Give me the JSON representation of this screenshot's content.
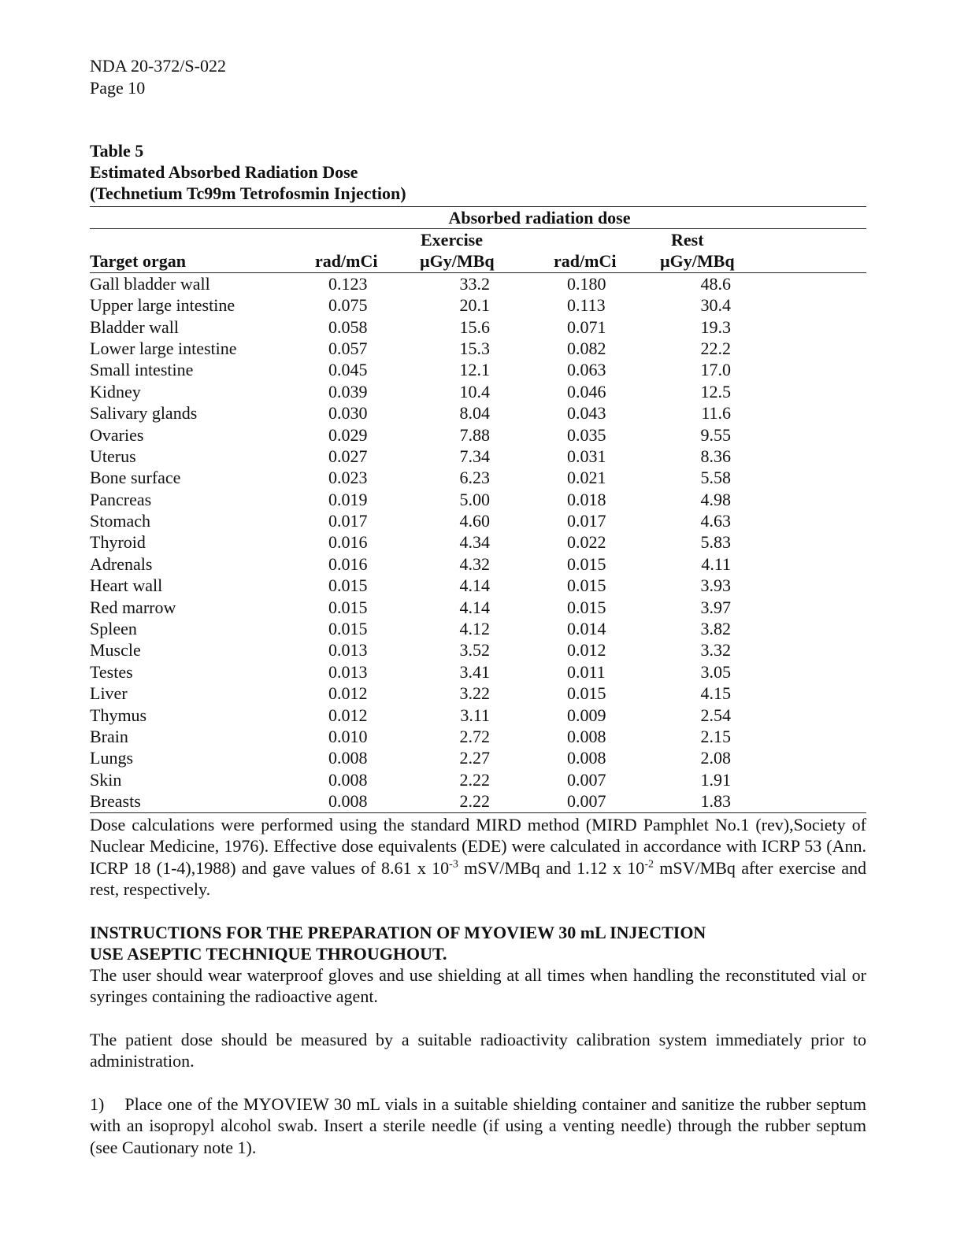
{
  "header": {
    "doc_id": "NDA 20-372/S-022",
    "page": "Page 10"
  },
  "table": {
    "number": "Table 5",
    "title": "Estimated Absorbed Radiation Dose",
    "subtitle": "(Technetium Tc99m Tetrofosmin Injection)",
    "group_header": "Absorbed radiation dose",
    "exercise_label": "Exercise",
    "rest_label": "Rest",
    "columns": [
      "Target organ",
      "rad/mCi",
      "µGy/MBq",
      "rad/mCi",
      "µGy/MBq"
    ],
    "rows": [
      [
        "Gall bladder wall",
        "0.123",
        "33.2",
        "0.180",
        "48.6"
      ],
      [
        "Upper large intestine",
        "0.075",
        "20.1",
        "0.113",
        "30.4"
      ],
      [
        "Bladder wall",
        "0.058",
        "15.6",
        "0.071",
        "19.3"
      ],
      [
        "Lower large intestine",
        "0.057",
        "15.3",
        "0.082",
        "22.2"
      ],
      [
        "Small intestine",
        "0.045",
        "12.1",
        "0.063",
        "17.0"
      ],
      [
        "Kidney",
        "0.039",
        "10.4",
        "0.046",
        "12.5"
      ],
      [
        "Salivary glands",
        "0.030",
        "8.04",
        "0.043",
        "11.6"
      ],
      [
        "Ovaries",
        "0.029",
        "7.88",
        "0.035",
        "9.55"
      ],
      [
        "Uterus",
        "0.027",
        "7.34",
        "0.031",
        "8.36"
      ],
      [
        "Bone surface",
        "0.023",
        "6.23",
        "0.021",
        "5.58"
      ],
      [
        "Pancreas",
        "0.019",
        "5.00",
        "0.018",
        "4.98"
      ],
      [
        "Stomach",
        "0.017",
        "4.60",
        "0.017",
        "4.63"
      ],
      [
        "Thyroid",
        "0.016",
        "4.34",
        "0.022",
        "5.83"
      ],
      [
        "Adrenals",
        "0.016",
        "4.32",
        "0.015",
        "4.11"
      ],
      [
        "Heart wall",
        "0.015",
        "4.14",
        "0.015",
        "3.93"
      ],
      [
        "Red marrow",
        "0.015",
        "4.14",
        "0.015",
        "3.97"
      ],
      [
        "Spleen",
        "0.015",
        "4.12",
        "0.014",
        "3.82"
      ],
      [
        "Muscle",
        "0.013",
        "3.52",
        "0.012",
        "3.32"
      ],
      [
        "Testes",
        "0.013",
        "3.41",
        "0.011",
        "3.05"
      ],
      [
        "Liver",
        "0.012",
        "3.22",
        "0.015",
        "4.15"
      ],
      [
        "Thymus",
        "0.012",
        "3.11",
        "0.009",
        "2.54"
      ],
      [
        "Brain",
        "0.010",
        "2.72",
        "0.008",
        "2.15"
      ],
      [
        "Lungs",
        "0.008",
        "2.27",
        "0.008",
        "2.08"
      ],
      [
        "Skin",
        "0.008",
        "2.22",
        "0.007",
        "1.91"
      ],
      [
        "Breasts",
        "0.008",
        "2.22",
        "0.007",
        "1.83"
      ]
    ]
  },
  "note": {
    "part1": "Dose calculations were performed using the standard MIRD method (MIRD Pamphlet No.1 (rev),Society of Nuclear Medicine, 1976). Effective dose equivalents (EDE) were calculated in accordance with ICRP 53 (Ann. ICRP 18 (1-4),1988) and gave values of 8.61 x 10",
    "exp1": "-3",
    "part2": " mSV/MBq and 1.12 x 10",
    "exp2": "-2",
    "part3": " mSV/MBq after exercise and rest, respectively."
  },
  "instructions": {
    "title1": "INSTRUCTIONS FOR THE PREPARATION OF MYOVIEW 30 mL INJECTION",
    "title2": "USE ASEPTIC TECHNIQUE THROUGHOUT.",
    "para1": "The user should wear waterproof gloves and use shielding at all times when handling the reconstituted vial or syringes containing the radioactive agent.",
    "para2": "The patient dose should be measured by a suitable radioactivity calibration system immediately prior to administration.",
    "step1_num": "1)",
    "step1": "Place one of the MYOVIEW 30 mL vials in a suitable shielding container and sanitize the rubber septum with an isopropyl alcohol swab. Insert a sterile needle (if using a venting needle) through the rubber septum (see Cautionary note 1)."
  }
}
